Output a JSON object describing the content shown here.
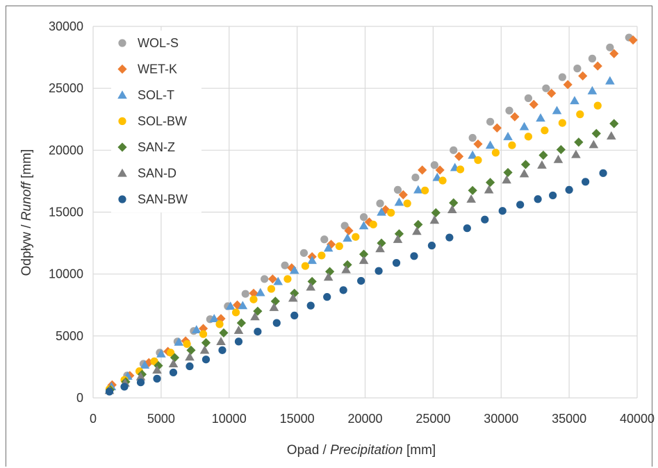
{
  "chart_data": {
    "type": "scatter",
    "title": "",
    "xlabel": {
      "prefix": "Opad / ",
      "italic": "Precipitation",
      "suffix": " [mm]"
    },
    "ylabel": {
      "prefix": "Odpływ / ",
      "italic": "Runoff",
      "suffix": " [mm]"
    },
    "xlim": [
      0,
      40000
    ],
    "ylim": [
      0,
      30000
    ],
    "xticks": [
      0,
      5000,
      10000,
      15000,
      20000,
      25000,
      30000,
      35000,
      40000
    ],
    "yticks": [
      0,
      5000,
      10000,
      15000,
      20000,
      25000,
      30000
    ],
    "grid": true,
    "legend_position": "top-left",
    "series": [
      {
        "name": "WOL-S",
        "marker": "circle",
        "color": "#a5a5a5",
        "points": [
          [
            1300,
            850
          ],
          [
            2500,
            1800
          ],
          [
            3700,
            2750
          ],
          [
            4900,
            3650
          ],
          [
            6200,
            4550
          ],
          [
            7400,
            5400
          ],
          [
            8600,
            6350
          ],
          [
            9900,
            7400
          ],
          [
            11200,
            8400
          ],
          [
            12600,
            9600
          ],
          [
            14100,
            10700
          ],
          [
            15500,
            11700
          ],
          [
            17000,
            12800
          ],
          [
            18500,
            13900
          ],
          [
            19900,
            14600
          ],
          [
            21100,
            15700
          ],
          [
            22400,
            16800
          ],
          [
            23700,
            17800
          ],
          [
            25100,
            18800
          ],
          [
            26500,
            20000
          ],
          [
            27900,
            21000
          ],
          [
            29200,
            22300
          ],
          [
            30600,
            23200
          ],
          [
            32000,
            24200
          ],
          [
            33300,
            25000
          ],
          [
            34500,
            25900
          ],
          [
            35600,
            26600
          ],
          [
            36700,
            27400
          ],
          [
            38000,
            28300
          ],
          [
            39400,
            29100
          ]
        ]
      },
      {
        "name": "WET-K",
        "marker": "diamond",
        "color": "#ed7d31",
        "points": [
          [
            1400,
            1050
          ],
          [
            2700,
            1800
          ],
          [
            4100,
            2850
          ],
          [
            5500,
            3750
          ],
          [
            6800,
            4600
          ],
          [
            8100,
            5600
          ],
          [
            9400,
            6400
          ],
          [
            10600,
            7500
          ],
          [
            11800,
            8450
          ],
          [
            13200,
            9600
          ],
          [
            14600,
            10500
          ],
          [
            16100,
            11400
          ],
          [
            17500,
            12400
          ],
          [
            18800,
            13500
          ],
          [
            20300,
            14200
          ],
          [
            21500,
            15200
          ],
          [
            22800,
            16400
          ],
          [
            24200,
            18400
          ],
          [
            25500,
            18400
          ],
          [
            26900,
            19500
          ],
          [
            28300,
            20500
          ],
          [
            29700,
            21800
          ],
          [
            31000,
            22700
          ],
          [
            32400,
            23700
          ],
          [
            33700,
            24600
          ],
          [
            34900,
            25300
          ],
          [
            36000,
            26000
          ],
          [
            37100,
            26800
          ],
          [
            38300,
            27800
          ],
          [
            39700,
            28900
          ]
        ]
      },
      {
        "name": "SOL-T",
        "marker": "triangle",
        "color": "#5b9bd5",
        "points": [
          [
            1350,
            900
          ],
          [
            2550,
            1750
          ],
          [
            3800,
            2650
          ],
          [
            5000,
            3550
          ],
          [
            6300,
            4500
          ],
          [
            7600,
            5500
          ],
          [
            8900,
            6400
          ],
          [
            10100,
            7400
          ],
          [
            11000,
            7450
          ],
          [
            12300,
            8500
          ],
          [
            13600,
            9400
          ],
          [
            14800,
            10300
          ],
          [
            16100,
            11100
          ],
          [
            17300,
            12100
          ],
          [
            18700,
            12900
          ],
          [
            19900,
            13900
          ],
          [
            21200,
            15000
          ],
          [
            22500,
            15800
          ],
          [
            23900,
            16800
          ],
          [
            25300,
            17800
          ],
          [
            26600,
            18600
          ],
          [
            27900,
            19600
          ],
          [
            29200,
            20400
          ],
          [
            30500,
            21100
          ],
          [
            31700,
            21900
          ],
          [
            32900,
            22600
          ],
          [
            34100,
            23200
          ],
          [
            35400,
            24000
          ],
          [
            36700,
            24800
          ],
          [
            38000,
            25600
          ]
        ]
      },
      {
        "name": "SOL-BW",
        "marker": "circle",
        "color": "#ffc000",
        "points": [
          [
            1200,
            700
          ],
          [
            2300,
            1450
          ],
          [
            3400,
            2150
          ],
          [
            4500,
            2950
          ],
          [
            5700,
            3650
          ],
          [
            6900,
            4350
          ],
          [
            8100,
            5150
          ],
          [
            9300,
            5950
          ],
          [
            10500,
            6900
          ],
          [
            11800,
            7950
          ],
          [
            13100,
            8800
          ],
          [
            14300,
            9600
          ],
          [
            15600,
            10650
          ],
          [
            16800,
            11500
          ],
          [
            18100,
            12250
          ],
          [
            19300,
            13000
          ],
          [
            20600,
            14000
          ],
          [
            21900,
            14950
          ],
          [
            23100,
            15700
          ],
          [
            24400,
            16750
          ],
          [
            25700,
            17550
          ],
          [
            27000,
            18450
          ],
          [
            28300,
            19200
          ],
          [
            29600,
            19800
          ],
          [
            30800,
            20400
          ],
          [
            32000,
            21100
          ],
          [
            33200,
            21600
          ],
          [
            34500,
            22200
          ],
          [
            35800,
            22900
          ],
          [
            37100,
            23600
          ]
        ]
      },
      {
        "name": "SAN-Z",
        "marker": "diamond",
        "color": "#548235",
        "points": [
          [
            1250,
            650
          ],
          [
            2400,
            1300
          ],
          [
            3600,
            1900
          ],
          [
            4800,
            2600
          ],
          [
            6000,
            3250
          ],
          [
            7200,
            3850
          ],
          [
            8300,
            4450
          ],
          [
            9600,
            5250
          ],
          [
            10900,
            6050
          ],
          [
            12100,
            7000
          ],
          [
            13400,
            7800
          ],
          [
            14800,
            8450
          ],
          [
            16100,
            9400
          ],
          [
            17400,
            10200
          ],
          [
            18700,
            10750
          ],
          [
            19900,
            11600
          ],
          [
            21200,
            12500
          ],
          [
            22500,
            13250
          ],
          [
            23900,
            14000
          ],
          [
            25200,
            14950
          ],
          [
            26500,
            15750
          ],
          [
            27900,
            16750
          ],
          [
            29200,
            17400
          ],
          [
            30500,
            18200
          ],
          [
            31800,
            18850
          ],
          [
            33100,
            19600
          ],
          [
            34400,
            20050
          ],
          [
            35700,
            20650
          ],
          [
            37000,
            21350
          ],
          [
            38300,
            22150
          ]
        ]
      },
      {
        "name": "SAN-D",
        "marker": "triangle",
        "color": "#7f7f7f",
        "points": [
          [
            1200,
            600
          ],
          [
            2350,
            1200
          ],
          [
            3500,
            1700
          ],
          [
            4700,
            2250
          ],
          [
            5900,
            2750
          ],
          [
            7100,
            3300
          ],
          [
            8200,
            3850
          ],
          [
            9400,
            4550
          ],
          [
            10700,
            5450
          ],
          [
            11900,
            6550
          ],
          [
            13300,
            7300
          ],
          [
            14700,
            8050
          ],
          [
            16000,
            8950
          ],
          [
            17300,
            9750
          ],
          [
            18600,
            10350
          ],
          [
            19900,
            11100
          ],
          [
            21100,
            12050
          ],
          [
            22400,
            12800
          ],
          [
            23800,
            13450
          ],
          [
            25100,
            14350
          ],
          [
            26400,
            15200
          ],
          [
            27800,
            16050
          ],
          [
            29100,
            16800
          ],
          [
            30400,
            17600
          ],
          [
            31700,
            18100
          ],
          [
            33000,
            18800
          ],
          [
            34200,
            19250
          ],
          [
            35500,
            19650
          ],
          [
            36800,
            20450
          ],
          [
            38100,
            21150
          ]
        ]
      },
      {
        "name": "SAN-BW",
        "marker": "circle",
        "color": "#255e91",
        "points": [
          [
            1200,
            500
          ],
          [
            2300,
            900
          ],
          [
            3500,
            1250
          ],
          [
            4700,
            1550
          ],
          [
            5900,
            2050
          ],
          [
            7100,
            2550
          ],
          [
            8300,
            3100
          ],
          [
            9500,
            3850
          ],
          [
            10700,
            4550
          ],
          [
            12100,
            5350
          ],
          [
            13500,
            6050
          ],
          [
            14800,
            6650
          ],
          [
            16000,
            7450
          ],
          [
            17200,
            8150
          ],
          [
            18400,
            8700
          ],
          [
            19700,
            9450
          ],
          [
            21000,
            10250
          ],
          [
            22300,
            10900
          ],
          [
            23600,
            11450
          ],
          [
            24900,
            12300
          ],
          [
            26200,
            12950
          ],
          [
            27500,
            13700
          ],
          [
            28800,
            14400
          ],
          [
            30100,
            15100
          ],
          [
            31400,
            15600
          ],
          [
            32700,
            16050
          ],
          [
            33800,
            16350
          ],
          [
            35000,
            16800
          ],
          [
            36200,
            17450
          ],
          [
            37500,
            18150
          ]
        ]
      }
    ]
  }
}
